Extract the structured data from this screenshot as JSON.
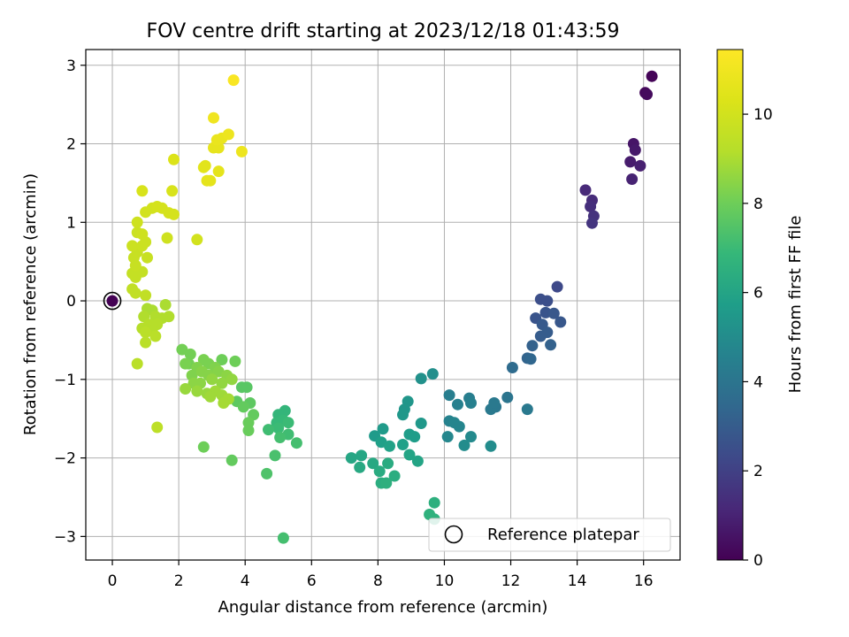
{
  "chart_data": {
    "type": "scatter",
    "title": "FOV centre drift starting at 2023/12/18 01:43:59",
    "xlabel": "Angular distance from reference (arcmin)",
    "ylabel": "Rotation from reference (arcmin)",
    "xlim": [
      -0.8,
      17.1
    ],
    "ylim": [
      -3.3,
      3.2
    ],
    "xticks": [
      0,
      2,
      4,
      6,
      8,
      10,
      12,
      14,
      16
    ],
    "yticks": [
      -3,
      -2,
      -1,
      0,
      1,
      2,
      3
    ],
    "grid": true,
    "legend": {
      "placement": "lower-right",
      "entries": [
        "Reference platepar"
      ]
    },
    "colorbar": {
      "label": "Hours from first FF file",
      "range": [
        0,
        11.45
      ],
      "ticks": [
        0,
        2,
        4,
        6,
        8,
        10
      ],
      "colormap": "viridis"
    },
    "reference_point": {
      "x": 0,
      "y": 0
    },
    "points": [
      {
        "x": 16.25,
        "y": 2.86,
        "c": 0.1
      },
      {
        "x": 16.05,
        "y": 2.65,
        "c": 0.2
      },
      {
        "x": 16.1,
        "y": 2.63,
        "c": 0.3
      },
      {
        "x": 15.7,
        "y": 2.0,
        "c": 0.6
      },
      {
        "x": 15.75,
        "y": 1.92,
        "c": 0.7
      },
      {
        "x": 15.6,
        "y": 1.77,
        "c": 0.8
      },
      {
        "x": 15.9,
        "y": 1.72,
        "c": 0.9
      },
      {
        "x": 15.65,
        "y": 1.55,
        "c": 1.0
      },
      {
        "x": 14.25,
        "y": 1.41,
        "c": 1.2
      },
      {
        "x": 14.45,
        "y": 1.28,
        "c": 1.3
      },
      {
        "x": 14.4,
        "y": 1.2,
        "c": 1.4
      },
      {
        "x": 14.5,
        "y": 1.08,
        "c": 1.5
      },
      {
        "x": 14.45,
        "y": 0.99,
        "c": 1.6
      },
      {
        "x": 13.4,
        "y": 0.18,
        "c": 2.3
      },
      {
        "x": 12.9,
        "y": 0.02,
        "c": 2.5
      },
      {
        "x": 13.1,
        "y": 0.0,
        "c": 2.5
      },
      {
        "x": 12.75,
        "y": -0.22,
        "c": 2.7
      },
      {
        "x": 13.05,
        "y": -0.15,
        "c": 2.7
      },
      {
        "x": 13.3,
        "y": -0.16,
        "c": 2.8
      },
      {
        "x": 13.5,
        "y": -0.27,
        "c": 2.8
      },
      {
        "x": 12.95,
        "y": -0.3,
        "c": 2.9
      },
      {
        "x": 13.1,
        "y": -0.4,
        "c": 3.0
      },
      {
        "x": 12.9,
        "y": -0.45,
        "c": 3.0
      },
      {
        "x": 12.65,
        "y": -0.57,
        "c": 3.2
      },
      {
        "x": 13.2,
        "y": -0.56,
        "c": 3.2
      },
      {
        "x": 12.5,
        "y": -0.73,
        "c": 3.3
      },
      {
        "x": 12.6,
        "y": -0.74,
        "c": 3.4
      },
      {
        "x": 12.05,
        "y": -0.85,
        "c": 3.6
      },
      {
        "x": 11.9,
        "y": -1.23,
        "c": 4.0
      },
      {
        "x": 11.55,
        "y": -1.35,
        "c": 4.1
      },
      {
        "x": 11.4,
        "y": -1.38,
        "c": 4.2
      },
      {
        "x": 12.5,
        "y": -1.38,
        "c": 4.2
      },
      {
        "x": 11.5,
        "y": -1.3,
        "c": 4.2
      },
      {
        "x": 10.75,
        "y": -1.24,
        "c": 4.4
      },
      {
        "x": 10.15,
        "y": -1.2,
        "c": 4.4
      },
      {
        "x": 10.8,
        "y": -1.3,
        "c": 4.5
      },
      {
        "x": 10.4,
        "y": -1.32,
        "c": 4.5
      },
      {
        "x": 10.15,
        "y": -1.53,
        "c": 4.6
      },
      {
        "x": 10.3,
        "y": -1.55,
        "c": 4.7
      },
      {
        "x": 10.45,
        "y": -1.6,
        "c": 4.7
      },
      {
        "x": 10.1,
        "y": -1.73,
        "c": 4.8
      },
      {
        "x": 10.8,
        "y": -1.73,
        "c": 4.9
      },
      {
        "x": 10.6,
        "y": -1.84,
        "c": 5.0
      },
      {
        "x": 11.4,
        "y": -1.85,
        "c": 5.0
      },
      {
        "x": 9.65,
        "y": -0.93,
        "c": 5.1
      },
      {
        "x": 9.3,
        "y": -0.99,
        "c": 5.2
      },
      {
        "x": 8.9,
        "y": -1.28,
        "c": 5.4
      },
      {
        "x": 8.8,
        "y": -1.38,
        "c": 5.4
      },
      {
        "x": 8.75,
        "y": -1.45,
        "c": 5.5
      },
      {
        "x": 9.3,
        "y": -1.56,
        "c": 5.5
      },
      {
        "x": 8.15,
        "y": -1.63,
        "c": 5.6
      },
      {
        "x": 7.9,
        "y": -1.72,
        "c": 5.6
      },
      {
        "x": 8.95,
        "y": -1.7,
        "c": 5.7
      },
      {
        "x": 9.1,
        "y": -1.73,
        "c": 5.7
      },
      {
        "x": 8.1,
        "y": -1.8,
        "c": 5.8
      },
      {
        "x": 8.75,
        "y": -1.83,
        "c": 5.8
      },
      {
        "x": 8.35,
        "y": -1.85,
        "c": 5.9
      },
      {
        "x": 8.95,
        "y": -1.96,
        "c": 6.0
      },
      {
        "x": 9.2,
        "y": -2.04,
        "c": 6.0
      },
      {
        "x": 7.2,
        "y": -2.0,
        "c": 6.1
      },
      {
        "x": 7.5,
        "y": -1.97,
        "c": 6.1
      },
      {
        "x": 7.85,
        "y": -2.07,
        "c": 6.2
      },
      {
        "x": 7.45,
        "y": -2.12,
        "c": 6.2
      },
      {
        "x": 8.3,
        "y": -2.07,
        "c": 6.3
      },
      {
        "x": 8.05,
        "y": -2.17,
        "c": 6.3
      },
      {
        "x": 8.5,
        "y": -2.23,
        "c": 6.4
      },
      {
        "x": 8.1,
        "y": -2.32,
        "c": 6.4
      },
      {
        "x": 8.25,
        "y": -2.32,
        "c": 6.5
      },
      {
        "x": 9.7,
        "y": -2.57,
        "c": 6.5
      },
      {
        "x": 9.55,
        "y": -2.72,
        "c": 6.6
      },
      {
        "x": 9.7,
        "y": -2.78,
        "c": 6.6
      },
      {
        "x": 5.2,
        "y": -1.4,
        "c": 6.8
      },
      {
        "x": 5.0,
        "y": -1.45,
        "c": 6.8
      },
      {
        "x": 5.15,
        "y": -1.52,
        "c": 6.9
      },
      {
        "x": 4.95,
        "y": -1.55,
        "c": 6.9
      },
      {
        "x": 5.3,
        "y": -1.55,
        "c": 7.0
      },
      {
        "x": 5.0,
        "y": -1.62,
        "c": 7.0
      },
      {
        "x": 4.7,
        "y": -1.64,
        "c": 7.1
      },
      {
        "x": 5.3,
        "y": -1.7,
        "c": 7.1
      },
      {
        "x": 5.05,
        "y": -1.74,
        "c": 7.2
      },
      {
        "x": 5.55,
        "y": -1.81,
        "c": 7.2
      },
      {
        "x": 4.9,
        "y": -1.97,
        "c": 7.3
      },
      {
        "x": 4.65,
        "y": -2.2,
        "c": 7.4
      },
      {
        "x": 5.15,
        "y": -3.02,
        "c": 7.2
      },
      {
        "x": 4.05,
        "y": -1.1,
        "c": 7.6
      },
      {
        "x": 3.9,
        "y": -1.1,
        "c": 7.6
      },
      {
        "x": 4.15,
        "y": -1.3,
        "c": 7.7
      },
      {
        "x": 3.75,
        "y": -1.28,
        "c": 7.7
      },
      {
        "x": 3.95,
        "y": -1.35,
        "c": 7.8
      },
      {
        "x": 4.25,
        "y": -1.45,
        "c": 7.8
      },
      {
        "x": 4.1,
        "y": -1.55,
        "c": 7.9
      },
      {
        "x": 4.1,
        "y": -1.65,
        "c": 7.9
      },
      {
        "x": 3.6,
        "y": -2.03,
        "c": 7.8
      },
      {
        "x": 2.75,
        "y": -1.86,
        "c": 8.0
      },
      {
        "x": 3.3,
        "y": -0.75,
        "c": 8.0
      },
      {
        "x": 3.7,
        "y": -0.77,
        "c": 8.0
      },
      {
        "x": 2.1,
        "y": -0.62,
        "c": 8.1
      },
      {
        "x": 2.35,
        "y": -0.68,
        "c": 8.1
      },
      {
        "x": 2.3,
        "y": -0.8,
        "c": 8.1
      },
      {
        "x": 2.2,
        "y": -0.8,
        "c": 8.2
      },
      {
        "x": 2.75,
        "y": -0.75,
        "c": 8.2
      },
      {
        "x": 2.9,
        "y": -0.8,
        "c": 8.2
      },
      {
        "x": 2.55,
        "y": -0.85,
        "c": 8.3
      },
      {
        "x": 3.1,
        "y": -0.85,
        "c": 8.3
      },
      {
        "x": 2.4,
        "y": -0.95,
        "c": 8.3
      },
      {
        "x": 2.7,
        "y": -0.9,
        "c": 8.4
      },
      {
        "x": 2.9,
        "y": -0.95,
        "c": 8.4
      },
      {
        "x": 3.2,
        "y": -0.9,
        "c": 8.4
      },
      {
        "x": 3.45,
        "y": -0.95,
        "c": 8.5
      },
      {
        "x": 2.45,
        "y": -1.05,
        "c": 8.5
      },
      {
        "x": 2.65,
        "y": -1.05,
        "c": 8.5
      },
      {
        "x": 3.0,
        "y": -1.0,
        "c": 8.6
      },
      {
        "x": 3.3,
        "y": -1.05,
        "c": 8.6
      },
      {
        "x": 3.6,
        "y": -1.0,
        "c": 8.6
      },
      {
        "x": 2.2,
        "y": -1.12,
        "c": 8.7
      },
      {
        "x": 2.55,
        "y": -1.15,
        "c": 8.7
      },
      {
        "x": 2.85,
        "y": -1.18,
        "c": 8.7
      },
      {
        "x": 3.1,
        "y": -1.15,
        "c": 8.8
      },
      {
        "x": 3.3,
        "y": -1.2,
        "c": 8.8
      },
      {
        "x": 2.95,
        "y": -1.22,
        "c": 8.8
      },
      {
        "x": 3.5,
        "y": -1.25,
        "c": 8.9
      },
      {
        "x": 3.35,
        "y": -1.3,
        "c": 8.9
      },
      {
        "x": 1.05,
        "y": -0.1,
        "c": 9.0
      },
      {
        "x": 1.2,
        "y": -0.12,
        "c": 9.0
      },
      {
        "x": 1.6,
        "y": -0.05,
        "c": 9.0
      },
      {
        "x": 0.95,
        "y": -0.2,
        "c": 9.1
      },
      {
        "x": 1.3,
        "y": -0.2,
        "c": 9.1
      },
      {
        "x": 1.7,
        "y": -0.2,
        "c": 9.1
      },
      {
        "x": 1.5,
        "y": -0.22,
        "c": 9.1
      },
      {
        "x": 1.1,
        "y": -0.3,
        "c": 9.2
      },
      {
        "x": 1.35,
        "y": -0.3,
        "c": 9.2
      },
      {
        "x": 0.9,
        "y": -0.35,
        "c": 9.2
      },
      {
        "x": 1.2,
        "y": -0.38,
        "c": 9.2
      },
      {
        "x": 1.0,
        "y": -0.4,
        "c": 9.3
      },
      {
        "x": 1.3,
        "y": -0.45,
        "c": 9.3
      },
      {
        "x": 1.0,
        "y": -0.53,
        "c": 9.3
      },
      {
        "x": 0.75,
        "y": -0.8,
        "c": 9.3
      },
      {
        "x": 1.35,
        "y": -1.61,
        "c": 9.4
      },
      {
        "x": 1.0,
        "y": 0.07,
        "c": 9.5
      },
      {
        "x": 0.7,
        "y": 0.1,
        "c": 9.5
      },
      {
        "x": 0.6,
        "y": 0.15,
        "c": 9.5
      },
      {
        "x": 0.7,
        "y": 0.3,
        "c": 9.6
      },
      {
        "x": 0.6,
        "y": 0.35,
        "c": 9.6
      },
      {
        "x": 0.9,
        "y": 0.37,
        "c": 9.6
      },
      {
        "x": 0.7,
        "y": 0.45,
        "c": 9.7
      },
      {
        "x": 0.65,
        "y": 0.55,
        "c": 9.7
      },
      {
        "x": 1.05,
        "y": 0.55,
        "c": 9.7
      },
      {
        "x": 0.75,
        "y": 0.62,
        "c": 9.7
      },
      {
        "x": 0.6,
        "y": 0.7,
        "c": 9.8
      },
      {
        "x": 0.9,
        "y": 0.7,
        "c": 9.8
      },
      {
        "x": 1.0,
        "y": 0.75,
        "c": 9.8
      },
      {
        "x": 0.75,
        "y": 0.87,
        "c": 9.8
      },
      {
        "x": 0.9,
        "y": 0.85,
        "c": 9.9
      },
      {
        "x": 0.75,
        "y": 1.0,
        "c": 9.9
      },
      {
        "x": 1.65,
        "y": 0.8,
        "c": 9.9
      },
      {
        "x": 2.55,
        "y": 0.78,
        "c": 10.0
      },
      {
        "x": 1.0,
        "y": 1.13,
        "c": 10.0
      },
      {
        "x": 1.2,
        "y": 1.18,
        "c": 10.0
      },
      {
        "x": 1.35,
        "y": 1.2,
        "c": 10.1
      },
      {
        "x": 1.5,
        "y": 1.18,
        "c": 10.1
      },
      {
        "x": 1.7,
        "y": 1.12,
        "c": 10.1
      },
      {
        "x": 1.85,
        "y": 1.1,
        "c": 10.1
      },
      {
        "x": 0.9,
        "y": 1.4,
        "c": 10.2
      },
      {
        "x": 1.8,
        "y": 1.4,
        "c": 10.2
      },
      {
        "x": 1.85,
        "y": 1.8,
        "c": 10.3
      },
      {
        "x": 2.8,
        "y": 1.72,
        "c": 10.5
      },
      {
        "x": 2.75,
        "y": 1.7,
        "c": 10.5
      },
      {
        "x": 3.2,
        "y": 1.65,
        "c": 10.6
      },
      {
        "x": 2.95,
        "y": 1.53,
        "c": 10.6
      },
      {
        "x": 2.85,
        "y": 1.53,
        "c": 10.6
      },
      {
        "x": 3.05,
        "y": 1.95,
        "c": 10.7
      },
      {
        "x": 3.2,
        "y": 1.95,
        "c": 10.7
      },
      {
        "x": 3.15,
        "y": 2.05,
        "c": 10.8
      },
      {
        "x": 3.3,
        "y": 2.07,
        "c": 10.8
      },
      {
        "x": 3.5,
        "y": 2.12,
        "c": 10.9
      },
      {
        "x": 3.9,
        "y": 1.9,
        "c": 10.9
      },
      {
        "x": 3.05,
        "y": 2.33,
        "c": 11.0
      },
      {
        "x": 3.65,
        "y": 2.81,
        "c": 11.3
      },
      {
        "x": 0.0,
        "y": 0.0,
        "c": 0.0
      }
    ]
  }
}
